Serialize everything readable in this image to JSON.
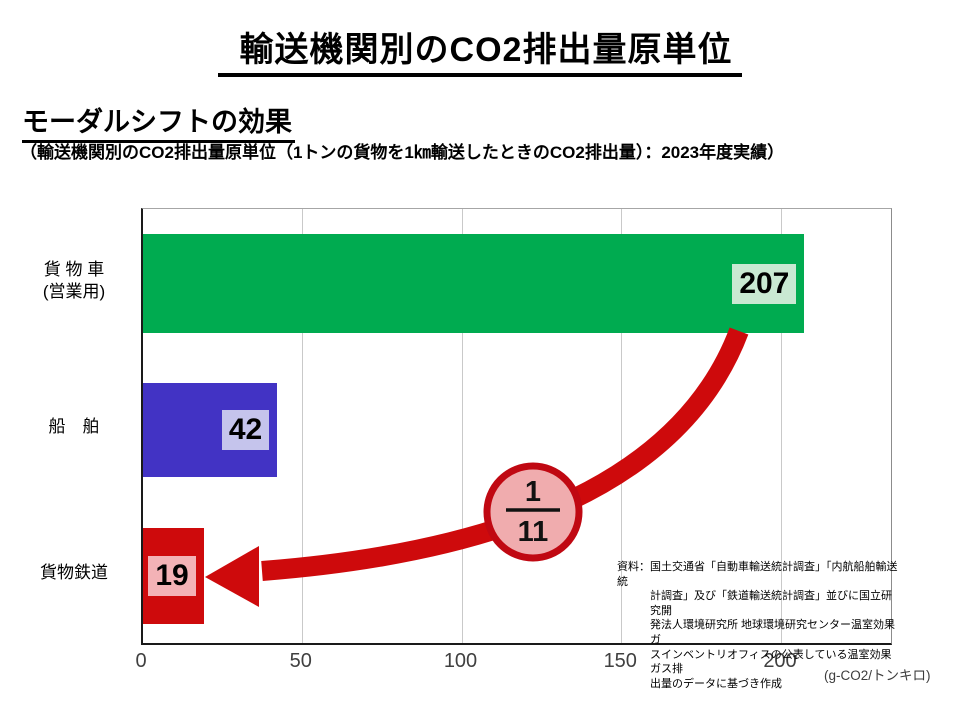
{
  "page": {
    "title": "輸送機関別のCO2排出量原単位",
    "subtitle": "モーダルシフトの効果",
    "subtitle_note": "（輸送機関別のCO2排出量原単位（1トンの貨物を1㎞輸送したときのCO2排出量）：2023年度実績）"
  },
  "chart_data": {
    "type": "bar",
    "orientation": "horizontal",
    "title": "モーダルシフトの効果（輸送機関別のCO2排出量原単位）2023年度実績",
    "xlabel_unit": "(g-CO2/トンキロ)",
    "xlim": [
      0,
      200
    ],
    "xticks": [
      "0",
      "50",
      "100",
      "150",
      "200"
    ],
    "xtick_values": [
      0,
      50,
      100,
      150,
      200
    ],
    "grid": "vertical-gridlines-on",
    "bars": [
      {
        "category": "貨物車（営業用）",
        "label_lines": [
          "貨 物 車",
          "(営業用)"
        ],
        "value": 207,
        "value_label": "207",
        "color": "#00AB50",
        "label_bg": "#C9E9D2"
      },
      {
        "category": "船舶",
        "label_lines": [
          "船　舶"
        ],
        "value": 42,
        "value_label": "42",
        "color": "#4233C4",
        "label_bg": "#C5C4EC"
      },
      {
        "category": "貨物鉄道",
        "label_lines": [
          "貨物鉄道"
        ],
        "value": 19,
        "value_label": "19",
        "color": "#CE0A0C",
        "label_bg": "#F3B2B6"
      }
    ],
    "annotation": {
      "fraction_numerator": "1",
      "fraction_denominator": "11",
      "arrow_color": "#CE0A0C",
      "circle_fill": "#F0ACAE",
      "circle_stroke": "#C00812",
      "fraction_color": "#111111"
    },
    "source_lines": [
      "資料：国土交通省「自動車輸送統計調査」「内航船舶輸送統",
      "計調査」及び「鉄道輸送統計調査」並びに国立研究開",
      "発法人環境研究所 地球環境研究センター温室効果ガ",
      "スインベントリオフィスの公表している温室効果ガス排",
      "出量のデータに基づき作成"
    ]
  }
}
